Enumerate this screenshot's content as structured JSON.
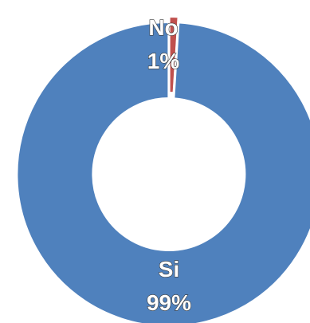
{
  "chart_data": {
    "type": "pie",
    "variant": "doughnut",
    "title": "",
    "categories": [
      "No",
      "Si"
    ],
    "values": [
      1,
      99
    ],
    "labels": [
      {
        "name": "No",
        "percent": "1%"
      },
      {
        "name": "Si",
        "percent": "99%"
      }
    ],
    "colors": [
      "#c0504d",
      "#4f81bd"
    ],
    "legend": "none",
    "start_angle_deg": 0,
    "direction": "clockwise"
  }
}
